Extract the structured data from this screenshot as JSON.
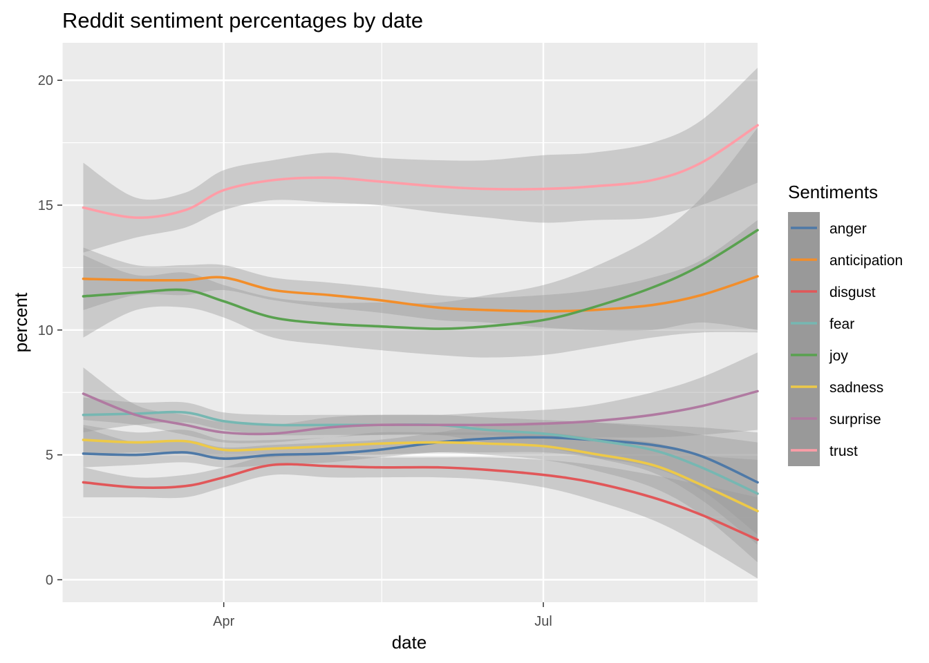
{
  "chart_data": {
    "type": "line",
    "title": "Reddit sentiment percentages by date",
    "xlabel": "date",
    "ylabel": "percent",
    "x_type": "date",
    "xlim": [
      "2020-02-15",
      "2020-08-31"
    ],
    "ylim": [
      -0.9,
      21.5
    ],
    "x_ticks": [
      {
        "date": "2020-04-01",
        "label": "Apr"
      },
      {
        "date": "2020-07-01",
        "label": "Jul"
      }
    ],
    "x_minor_ticks": [
      "2020-02-15",
      "2020-05-16",
      "2020-08-16"
    ],
    "y_ticks": [
      0,
      5,
      10,
      15,
      20
    ],
    "y_minor_ticks": [
      2.5,
      7.5,
      12.5,
      17.5
    ],
    "grid": true,
    "smoothing": "loess with confidence band",
    "band_color": "#999999",
    "panel_background": "#ebebeb",
    "legend": {
      "title": "Sentiments",
      "position": "right"
    },
    "x": [
      "2020-02-21",
      "2020-03-07",
      "2020-03-21",
      "2020-04-01",
      "2020-04-15",
      "2020-05-01",
      "2020-05-15",
      "2020-06-01",
      "2020-06-15",
      "2020-07-01",
      "2020-07-15",
      "2020-08-01",
      "2020-08-15",
      "2020-08-31"
    ],
    "series": [
      {
        "name": "anger",
        "color": "#4e79a7",
        "values": [
          5.05,
          5.0,
          5.1,
          4.85,
          5.0,
          5.05,
          5.2,
          5.5,
          5.65,
          5.7,
          5.6,
          5.4,
          4.95,
          3.9
        ],
        "lower": [
          4.5,
          4.6,
          4.7,
          4.5,
          4.6,
          4.7,
          4.9,
          5.1,
          5.1,
          5.1,
          4.9,
          4.5,
          3.6,
          1.8
        ],
        "upper": [
          6.1,
          5.5,
          5.6,
          5.3,
          5.4,
          5.5,
          5.6,
          5.9,
          6.2,
          6.3,
          6.3,
          6.2,
          6.1,
          5.9
        ]
      },
      {
        "name": "anticipation",
        "color": "#f28e2b",
        "values": [
          12.05,
          12.0,
          12.0,
          12.1,
          11.6,
          11.4,
          11.2,
          10.9,
          10.8,
          10.75,
          10.8,
          11.0,
          11.4,
          12.15
        ],
        "lower": [
          10.8,
          11.4,
          11.4,
          11.6,
          11.2,
          10.9,
          10.7,
          10.4,
          10.3,
          10.1,
          10.0,
          10.0,
          10.3,
          10.0
        ],
        "upper": [
          13.3,
          12.6,
          12.6,
          12.6,
          12.1,
          11.9,
          11.7,
          11.4,
          11.3,
          11.4,
          11.6,
          12.1,
          12.8,
          14.4
        ]
      },
      {
        "name": "disgust",
        "color": "#e15759",
        "values": [
          3.9,
          3.7,
          3.75,
          4.1,
          4.6,
          4.55,
          4.5,
          4.5,
          4.4,
          4.2,
          3.9,
          3.3,
          2.6,
          1.6
        ],
        "lower": [
          3.3,
          3.3,
          3.3,
          3.7,
          4.2,
          4.1,
          4.1,
          4.1,
          4.0,
          3.7,
          3.2,
          2.4,
          1.4,
          0.05
        ],
        "upper": [
          4.5,
          4.1,
          4.2,
          4.5,
          5.0,
          5.0,
          4.9,
          4.9,
          4.9,
          4.8,
          4.6,
          4.2,
          3.8,
          3.3
        ]
      },
      {
        "name": "fear",
        "color": "#76b7b2",
        "values": [
          6.6,
          6.65,
          6.7,
          6.35,
          6.2,
          6.2,
          6.2,
          6.2,
          6.0,
          5.85,
          5.6,
          5.2,
          4.5,
          3.45
        ],
        "lower": [
          5.9,
          6.2,
          6.3,
          6.0,
          5.8,
          5.8,
          5.8,
          5.8,
          5.5,
          5.3,
          4.9,
          4.3,
          3.2,
          1.4
        ],
        "upper": [
          7.3,
          7.1,
          7.1,
          6.7,
          6.6,
          6.6,
          6.6,
          6.6,
          6.5,
          6.4,
          6.3,
          6.1,
          5.8,
          5.5
        ]
      },
      {
        "name": "joy",
        "color": "#59a14f",
        "values": [
          11.35,
          11.5,
          11.6,
          11.15,
          10.5,
          10.25,
          10.15,
          10.05,
          10.15,
          10.4,
          10.9,
          11.7,
          12.6,
          14.0
        ],
        "lower": [
          9.7,
          10.8,
          10.9,
          10.5,
          9.7,
          9.4,
          9.2,
          9.0,
          8.9,
          9.0,
          9.3,
          9.7,
          9.9,
          9.9
        ],
        "upper": [
          13.0,
          12.2,
          12.3,
          11.8,
          11.3,
          11.1,
          11.1,
          11.1,
          11.4,
          11.8,
          12.5,
          13.7,
          15.3,
          18.1
        ]
      },
      {
        "name": "sadness",
        "color": "#edc948",
        "values": [
          5.6,
          5.5,
          5.55,
          5.2,
          5.25,
          5.35,
          5.45,
          5.5,
          5.45,
          5.35,
          5.05,
          4.6,
          3.8,
          2.75
        ],
        "lower": [
          5.0,
          5.1,
          5.1,
          4.8,
          4.9,
          5.0,
          5.0,
          5.1,
          5.0,
          4.8,
          4.4,
          3.7,
          2.6,
          0.7
        ],
        "upper": [
          6.2,
          5.9,
          6.0,
          5.6,
          5.6,
          5.7,
          5.9,
          5.9,
          5.9,
          5.9,
          5.7,
          5.5,
          5.0,
          4.8
        ]
      },
      {
        "name": "surprise",
        "color": "#b07aa1",
        "values": [
          7.45,
          6.6,
          6.2,
          5.9,
          5.85,
          6.1,
          6.2,
          6.2,
          6.2,
          6.25,
          6.35,
          6.6,
          6.95,
          7.55
        ],
        "lower": [
          6.4,
          6.2,
          5.8,
          5.5,
          5.5,
          5.7,
          5.8,
          5.8,
          5.8,
          5.7,
          5.7,
          5.7,
          5.8,
          6.0
        ],
        "upper": [
          8.5,
          7.0,
          6.6,
          6.3,
          6.2,
          6.5,
          6.6,
          6.6,
          6.7,
          6.8,
          7.0,
          7.5,
          8.1,
          9.1
        ]
      },
      {
        "name": "trust",
        "color": "#ff9da7",
        "values": [
          14.9,
          14.5,
          14.8,
          15.6,
          16.0,
          16.1,
          15.95,
          15.75,
          15.65,
          15.65,
          15.75,
          16.0,
          16.7,
          18.2
        ],
        "lower": [
          13.1,
          13.7,
          14.1,
          14.8,
          15.2,
          15.1,
          15.0,
          14.7,
          14.5,
          14.3,
          14.4,
          14.5,
          15.0,
          15.9
        ],
        "upper": [
          16.7,
          15.3,
          15.5,
          16.4,
          16.8,
          17.1,
          16.9,
          16.8,
          16.8,
          17.0,
          17.1,
          17.5,
          18.4,
          20.5
        ]
      }
    ]
  }
}
